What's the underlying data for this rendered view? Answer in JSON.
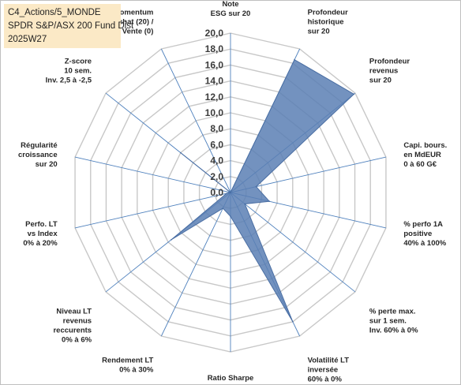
{
  "header": {
    "line1": "C4_Actions/5_MONDE",
    "line2": "SPDR S&P/ASX 200 Fund Dist",
    "line3": "2025W27"
  },
  "chart_data": {
    "type": "radar",
    "title": "",
    "rmin": 0,
    "rmax": 20,
    "tick_step": 2,
    "tick_labels": [
      "0,0",
      "2,0",
      "4,0",
      "6,0",
      "8,0",
      "10,0",
      "12,0",
      "14,0",
      "16,0",
      "18,0",
      "20,0"
    ],
    "grid": true,
    "colors": {
      "fill": "#5b7fb4",
      "stroke": "#4a6ea3",
      "grid": "#c8c8c8",
      "axis": "#4f81bd"
    },
    "categories": [
      [
        "Note",
        "ESG sur 20"
      ],
      [
        "Profondeur",
        "historique",
        "sur 20"
      ],
      [
        "Profondeur",
        "revenus",
        "sur 20"
      ],
      [
        "Capi. bours.",
        "en MdEUR",
        "0 à 60 G€"
      ],
      [
        "% perfo 1A",
        "positive",
        "40% à 100%"
      ],
      [
        "% perte max.",
        "sur 1 sem.",
        "Inv. 60% à 0%"
      ],
      [
        "Volatilité LT",
        "inversée",
        "60% à 0%"
      ],
      [
        "Ratio Sharpe",
        "0 à 2"
      ],
      [
        "Rendement LT",
        "0% à 30%"
      ],
      [
        "Niveau LT",
        "revenus",
        "reccurents",
        "0% à 6%"
      ],
      [
        "Perfo. LT",
        "vs Index",
        "0% à 20%"
      ],
      [
        "Régularité",
        "croissance",
        "sur 20"
      ],
      [
        "Z-score",
        "10 sem.",
        "Inv. 2,5 à -2,5"
      ],
      [
        "Momentum",
        "Achat (20) /",
        "Vente (0)"
      ]
    ],
    "series": [
      {
        "values": [
          0,
          18.5,
          19.8,
          3.3,
          5.0,
          2.3,
          18.0,
          3.0,
          2.2,
          9.5,
          0.5,
          0,
          8.0,
          0
        ]
      }
    ]
  }
}
